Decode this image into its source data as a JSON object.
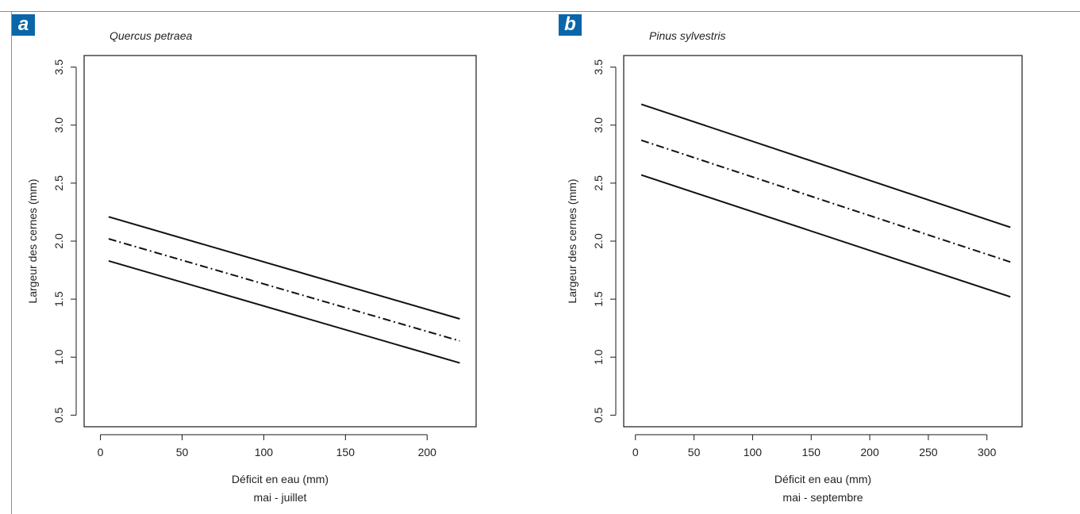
{
  "panel_labels": [
    "a",
    "b"
  ],
  "chart_data": [
    {
      "type": "line",
      "panel_label": "a",
      "title": "Quercus petraea",
      "xlabel": "Déficit en eau (mm)",
      "xlabel_sub": "mai - juillet",
      "ylabel": "Largeur des cernes (mm)",
      "xlim": [
        -10,
        230
      ],
      "ylim": [
        0.4,
        3.6
      ],
      "xticks": [
        0,
        50,
        100,
        150,
        200
      ],
      "yticks": [
        0.5,
        1.0,
        1.5,
        2.0,
        2.5,
        3.0,
        3.5
      ],
      "ytick_labels": [
        "0.5",
        "1.0",
        "1.5",
        "2.0",
        "2.5",
        "3.0",
        "3.5"
      ],
      "grid": false,
      "series": [
        {
          "style": "solid",
          "x": [
            5,
            220
          ],
          "y": [
            2.21,
            1.33
          ]
        },
        {
          "style": "dashdot",
          "x": [
            5,
            220
          ],
          "y": [
            2.02,
            1.14
          ]
        },
        {
          "style": "solid",
          "x": [
            5,
            220
          ],
          "y": [
            1.83,
            0.95
          ]
        }
      ]
    },
    {
      "type": "line",
      "panel_label": "b",
      "title": "Pinus sylvestris",
      "xlabel": "Déficit en eau (mm)",
      "xlabel_sub": "mai - septembre",
      "ylabel": "Largeur des cernes (mm)",
      "xlim": [
        -10,
        330
      ],
      "ylim": [
        0.4,
        3.6
      ],
      "xticks": [
        0,
        50,
        100,
        150,
        200,
        250,
        300
      ],
      "yticks": [
        0.5,
        1.0,
        1.5,
        2.0,
        2.5,
        3.0,
        3.5
      ],
      "ytick_labels": [
        "0.5",
        "1.0",
        "1.5",
        "2.0",
        "2.5",
        "3.0",
        "3.5"
      ],
      "grid": false,
      "series": [
        {
          "style": "solid",
          "x": [
            5,
            320
          ],
          "y": [
            3.18,
            2.12
          ]
        },
        {
          "style": "dashdot",
          "x": [
            5,
            320
          ],
          "y": [
            2.87,
            1.82
          ]
        },
        {
          "style": "solid",
          "x": [
            5,
            320
          ],
          "y": [
            2.57,
            1.52
          ]
        }
      ]
    }
  ]
}
